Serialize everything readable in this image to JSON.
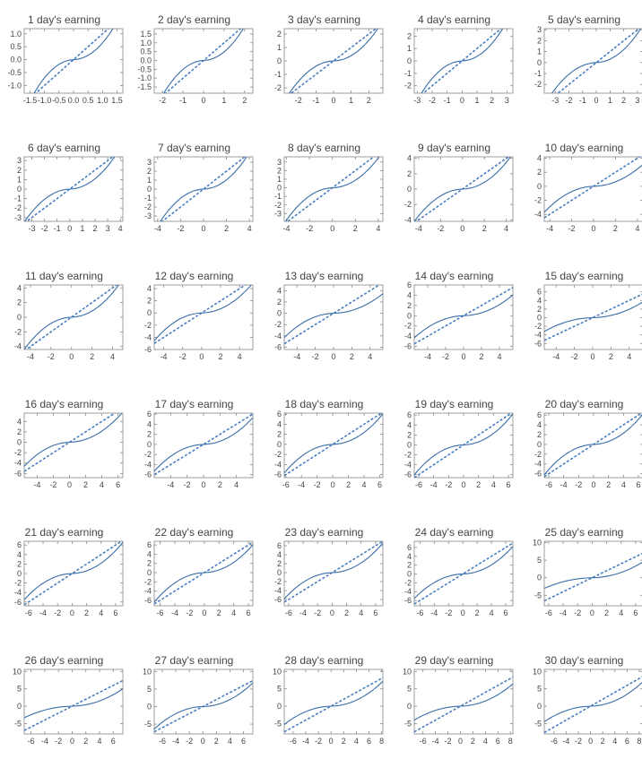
{
  "style": {
    "line_color": "#3a6ea8",
    "ref_color": "#4a7fc0",
    "frame_color": "#888888",
    "text_color": "#444444"
  },
  "chart_data": [
    {
      "type": "line",
      "title": "1 day's earning",
      "xlim": [
        -1.7,
        1.7
      ],
      "ylim": [
        -1.3,
        1.2
      ],
      "xticks": [
        "-1.5",
        "-1.0",
        "-0.5",
        "0.0",
        "0.5",
        "1.0",
        "1.5"
      ],
      "yticks": [
        "-1.0",
        "-0.5",
        "0.0",
        "0.5",
        "1.0"
      ],
      "xtick_values": [
        -1.5,
        -1.0,
        -0.5,
        0.0,
        0.5,
        1.0,
        1.5
      ],
      "ytick_values": [
        -1.0,
        -0.5,
        0.0,
        0.5,
        1.0
      ],
      "sample_tails": [
        -1.3,
        1.2
      ]
    },
    {
      "type": "line",
      "title": "2 day's earning",
      "xlim": [
        -2.4,
        2.4
      ],
      "ylim": [
        -1.85,
        1.8
      ],
      "xticks": [
        "-2",
        "-1",
        "0",
        "1",
        "2"
      ],
      "yticks": [
        "-1.5",
        "-1.0",
        "-0.5",
        "0.0",
        "0.5",
        "1.0",
        "1.5"
      ],
      "xtick_values": [
        -2,
        -1,
        0,
        1,
        2
      ],
      "ytick_values": [
        -1.5,
        -1.0,
        -0.5,
        0.0,
        0.5,
        1.0,
        1.5
      ],
      "sample_tails": [
        -1.85,
        1.8
      ]
    },
    {
      "type": "line",
      "title": "3 day's earning",
      "xlim": [
        -2.8,
        2.8
      ],
      "ylim": [
        -2.4,
        2.4
      ],
      "xticks": [
        "-2",
        "-1",
        "0",
        "1",
        "2"
      ],
      "yticks": [
        "-2",
        "-1",
        "0",
        "1",
        "2"
      ],
      "xtick_values": [
        -2,
        -1,
        0,
        1,
        2
      ],
      "ytick_values": [
        -2,
        -1,
        0,
        1,
        2
      ],
      "sample_tails": [
        -2.4,
        2.4
      ]
    },
    {
      "type": "line",
      "title": "4 day's earning",
      "xlim": [
        -3.2,
        3.4
      ],
      "ylim": [
        -2.6,
        2.6
      ],
      "xticks": [
        "-3",
        "-2",
        "-1",
        "0",
        "1",
        "2",
        "3"
      ],
      "yticks": [
        "-2",
        "-1",
        "0",
        "1",
        "2"
      ],
      "xtick_values": [
        -3,
        -2,
        -1,
        0,
        1,
        2,
        3
      ],
      "ytick_values": [
        -2,
        -1,
        0,
        1,
        2
      ],
      "sample_tails": [
        -2.6,
        2.6
      ]
    },
    {
      "type": "line",
      "title": "5 day's earning",
      "xlim": [
        -3.8,
        3.4
      ],
      "ylim": [
        -2.8,
        3.1
      ],
      "xticks": [
        "-3",
        "-2",
        "-1",
        "0",
        "1",
        "2",
        "3"
      ],
      "yticks": [
        "-2",
        "-1",
        "0",
        "1",
        "2",
        "3"
      ],
      "xtick_values": [
        -3,
        -2,
        -1,
        0,
        1,
        2,
        3
      ],
      "ytick_values": [
        -2,
        -1,
        0,
        1,
        2,
        3
      ],
      "sample_tails": [
        -2.8,
        3.1
      ]
    },
    {
      "type": "line",
      "title": "6 day's earning",
      "xlim": [
        -3.6,
        4.2
      ],
      "ylim": [
        -3.4,
        3.4
      ],
      "xticks": [
        "-3",
        "-2",
        "-1",
        "0",
        "1",
        "2",
        "3",
        "4"
      ],
      "yticks": [
        "-3",
        "-2",
        "-1",
        "0",
        "1",
        "2",
        "3"
      ],
      "xtick_values": [
        -3,
        -2,
        -1,
        0,
        1,
        2,
        3,
        4
      ],
      "ytick_values": [
        -3,
        -2,
        -1,
        0,
        1,
        2,
        3
      ],
      "sample_tails": [
        -3.4,
        3.4
      ]
    },
    {
      "type": "line",
      "title": "7 day's earning",
      "xlim": [
        -4.3,
        4.3
      ],
      "ylim": [
        -3.6,
        3.6
      ],
      "xticks": [
        "-4",
        "-2",
        "0",
        "2",
        "4"
      ],
      "yticks": [
        "-3",
        "-2",
        "-1",
        "0",
        "1",
        "2",
        "3"
      ],
      "xtick_values": [
        -4,
        -2,
        0,
        2,
        4
      ],
      "ytick_values": [
        -3,
        -2,
        -1,
        0,
        1,
        2,
        3
      ],
      "sample_tails": [
        -3.6,
        3.6
      ]
    },
    {
      "type": "line",
      "title": "8 day's earning",
      "xlim": [
        -4.2,
        4.4
      ],
      "ylim": [
        -3.9,
        3.6
      ],
      "xticks": [
        "-4",
        "-2",
        "0",
        "2",
        "4"
      ],
      "yticks": [
        "-3",
        "-2",
        "-1",
        "0",
        "1",
        "2",
        "3"
      ],
      "xtick_values": [
        -4,
        -2,
        0,
        2,
        4
      ],
      "ytick_values": [
        -3,
        -2,
        -1,
        0,
        1,
        2,
        3
      ],
      "sample_tails": [
        -3.9,
        3.6
      ]
    },
    {
      "type": "line",
      "title": "9 day's earning",
      "xlim": [
        -4.4,
        4.6
      ],
      "ylim": [
        -4.2,
        4.2
      ],
      "xticks": [
        "-4",
        "-2",
        "0",
        "2",
        "4"
      ],
      "yticks": [
        "-4",
        "-2",
        "0",
        "2",
        "4"
      ],
      "xtick_values": [
        -4,
        -2,
        0,
        2,
        4
      ],
      "ytick_values": [
        -4,
        -2,
        0,
        2,
        4
      ],
      "sample_tails": [
        -4.2,
        4.2
      ]
    },
    {
      "type": "line",
      "title": "10 day's earning",
      "xlim": [
        -4.5,
        4.5
      ],
      "ylim": [
        -5.0,
        4.2
      ],
      "xticks": [
        "-4",
        "-2",
        "0",
        "2",
        "4"
      ],
      "yticks": [
        "-4",
        "-2",
        "0",
        "2",
        "4"
      ],
      "xtick_values": [
        -4,
        -2,
        0,
        2,
        4
      ],
      "ytick_values": [
        -4,
        -2,
        0,
        2,
        4
      ],
      "sample_tails": [
        -5.0,
        4.2
      ]
    },
    {
      "type": "line",
      "title": "11 day's earning",
      "xlim": [
        -4.6,
        5.0
      ],
      "ylim": [
        -4.4,
        4.4
      ],
      "xticks": [
        "-4",
        "-2",
        "0",
        "2",
        "4"
      ],
      "yticks": [
        "-4",
        "-2",
        "0",
        "2",
        "4"
      ],
      "xtick_values": [
        -4,
        -2,
        0,
        2,
        4
      ],
      "ytick_values": [
        -4,
        -2,
        0,
        2,
        4
      ],
      "sample_tails": [
        -4.4,
        4.4
      ]
    },
    {
      "type": "line",
      "title": "12 day's earning",
      "xlim": [
        -5.0,
        5.4
      ],
      "ylim": [
        -6.0,
        4.6
      ],
      "xticks": [
        "-4",
        "-2",
        "0",
        "2",
        "4"
      ],
      "yticks": [
        "-6",
        "-4",
        "-2",
        "0",
        "2",
        "4"
      ],
      "xtick_values": [
        -4,
        -2,
        0,
        2,
        4
      ],
      "ytick_values": [
        -6,
        -4,
        -2,
        0,
        2,
        4
      ],
      "sample_tails": [
        -5.0,
        4.6
      ]
    },
    {
      "type": "line",
      "title": "13 day's earning",
      "xlim": [
        -5.4,
        5.4
      ],
      "ylim": [
        -6.4,
        5.0
      ],
      "xticks": [
        "-4",
        "-2",
        "0",
        "2",
        "4"
      ],
      "yticks": [
        "-6",
        "-4",
        "-2",
        "0",
        "2",
        "4"
      ],
      "xtick_values": [
        -4,
        -2,
        0,
        2,
        4
      ],
      "ytick_values": [
        -6,
        -4,
        -2,
        0,
        2,
        4
      ],
      "sample_tails": [
        -6.2,
        5.0
      ]
    },
    {
      "type": "line",
      "title": "14 day's earning",
      "xlim": [
        -5.5,
        5.5
      ],
      "ylim": [
        -6.6,
        6.0
      ],
      "xticks": [
        "-4",
        "-2",
        "0",
        "2",
        "4"
      ],
      "yticks": [
        "-6",
        "-4",
        "-2",
        "0",
        "2",
        "4",
        "6"
      ],
      "xtick_values": [
        -4,
        -2,
        0,
        2,
        4
      ],
      "ytick_values": [
        -6,
        -4,
        -2,
        0,
        2,
        4,
        6
      ],
      "sample_tails": [
        -6.4,
        6.0
      ]
    },
    {
      "type": "line",
      "title": "15 day's earning",
      "xlim": [
        -5.3,
        5.5
      ],
      "ylim": [
        -7.4,
        7.6
      ],
      "xticks": [
        "-4",
        "-2",
        "0",
        "2",
        "4"
      ],
      "yticks": [
        "-6",
        "-4",
        "-2",
        "0",
        "2",
        "4",
        "6"
      ],
      "xtick_values": [
        -4,
        -2,
        0,
        2,
        4
      ],
      "ytick_values": [
        -6,
        -4,
        -2,
        0,
        2,
        4,
        6
      ],
      "sample_tails": [
        -7.2,
        7.6
      ]
    },
    {
      "type": "line",
      "title": "16 day's earning",
      "xlim": [
        -5.6,
        6.6
      ],
      "ylim": [
        -6.8,
        5.6
      ],
      "xticks": [
        "-4",
        "-2",
        "0",
        "2",
        "4",
        "6"
      ],
      "yticks": [
        "-6",
        "-4",
        "-2",
        "0",
        "2",
        "4"
      ],
      "xtick_values": [
        -4,
        -2,
        0,
        2,
        4,
        6
      ],
      "ytick_values": [
        -6,
        -4,
        -2,
        0,
        2,
        4
      ],
      "sample_tails": [
        -6.2,
        5.6
      ]
    },
    {
      "type": "line",
      "title": "17 day's earning",
      "xlim": [
        -6.0,
        6.0
      ],
      "ylim": [
        -6.6,
        6.2
      ],
      "xticks": [
        "-4",
        "-2",
        "0",
        "2",
        "4"
      ],
      "yticks": [
        "-6",
        "-4",
        "-2",
        "0",
        "2",
        "4",
        "6"
      ],
      "xtick_values": [
        -4,
        -2,
        0,
        2,
        4
      ],
      "ytick_values": [
        -6,
        -4,
        -2,
        0,
        2,
        4,
        6
      ],
      "sample_tails": [
        -6.2,
        6.2
      ]
    },
    {
      "type": "line",
      "title": "18 day's earning",
      "xlim": [
        -6.2,
        6.4
      ],
      "ylim": [
        -6.6,
        6.2
      ],
      "xticks": [
        "-6",
        "-4",
        "-2",
        "0",
        "2",
        "4",
        "6"
      ],
      "yticks": [
        "-6",
        "-4",
        "-2",
        "0",
        "2",
        "4",
        "6"
      ],
      "xtick_values": [
        -6,
        -4,
        -2,
        0,
        2,
        4,
        6
      ],
      "ytick_values": [
        -6,
        -4,
        -2,
        0,
        2,
        4,
        6
      ],
      "sample_tails": [
        -6.2,
        6.2
      ]
    },
    {
      "type": "line",
      "title": "19 day's earning",
      "xlim": [
        -6.6,
        6.6
      ],
      "ylim": [
        -6.6,
        6.4
      ],
      "xticks": [
        "-6",
        "-4",
        "-2",
        "0",
        "2",
        "4",
        "6"
      ],
      "yticks": [
        "-6",
        "-4",
        "-2",
        "0",
        "2",
        "4",
        "6"
      ],
      "xtick_values": [
        -6,
        -4,
        -2,
        0,
        2,
        4,
        6
      ],
      "ytick_values": [
        -6,
        -4,
        -2,
        0,
        2,
        4,
        6
      ],
      "sample_tails": [
        -6.2,
        6.4
      ]
    },
    {
      "type": "line",
      "title": "20 day's earning",
      "xlim": [
        -6.6,
        6.6
      ],
      "ylim": [
        -6.8,
        6.4
      ],
      "xticks": [
        "-6",
        "-4",
        "-2",
        "0",
        "2",
        "4",
        "6"
      ],
      "yticks": [
        "-6",
        "-4",
        "-2",
        "0",
        "2",
        "4",
        "6"
      ],
      "xtick_values": [
        -6,
        -4,
        -2,
        0,
        2,
        4,
        6
      ],
      "ytick_values": [
        -6,
        -4,
        -2,
        0,
        2,
        4,
        6
      ],
      "sample_tails": [
        -6.4,
        6.4
      ]
    },
    {
      "type": "line",
      "title": "21 day's earning",
      "xlim": [
        -6.6,
        7.0
      ],
      "ylim": [
        -6.8,
        6.8
      ],
      "xticks": [
        "-6",
        "-4",
        "-2",
        "0",
        "2",
        "4",
        "6"
      ],
      "yticks": [
        "-6",
        "-4",
        "-2",
        "0",
        "2",
        "4",
        "6"
      ],
      "xtick_values": [
        -6,
        -4,
        -2,
        0,
        2,
        4,
        6
      ],
      "ytick_values": [
        -6,
        -4,
        -2,
        0,
        2,
        4,
        6
      ],
      "sample_tails": [
        -6.4,
        6.8
      ]
    },
    {
      "type": "line",
      "title": "22 day's earning",
      "xlim": [
        -6.8,
        6.6
      ],
      "ylim": [
        -7.2,
        6.8
      ],
      "xticks": [
        "-6",
        "-4",
        "-2",
        "0",
        "2",
        "4",
        "6"
      ],
      "yticks": [
        "-6",
        "-4",
        "-2",
        "0",
        "2",
        "4",
        "6"
      ],
      "xtick_values": [
        -6,
        -4,
        -2,
        0,
        2,
        4,
        6
      ],
      "ytick_values": [
        -6,
        -4,
        -2,
        0,
        2,
        4,
        6
      ],
      "sample_tails": [
        -6.6,
        6.6
      ]
    },
    {
      "type": "line",
      "title": "23 day's earning",
      "xlim": [
        -6.6,
        7.0
      ],
      "ylim": [
        -7.4,
        7.0
      ],
      "xticks": [
        "-6",
        "-4",
        "-2",
        "0",
        "2",
        "4",
        "6"
      ],
      "yticks": [
        "-6",
        "-4",
        "-2",
        "0",
        "2",
        "4",
        "6"
      ],
      "xtick_values": [
        -6,
        -4,
        -2,
        0,
        2,
        4,
        6
      ],
      "ytick_values": [
        -6,
        -4,
        -2,
        0,
        2,
        4,
        6
      ],
      "sample_tails": [
        -6.8,
        6.8
      ]
    },
    {
      "type": "line",
      "title": "24 day's earning",
      "xlim": [
        -6.8,
        7.0
      ],
      "ylim": [
        -7.2,
        7.4
      ],
      "xticks": [
        "-6",
        "-4",
        "-2",
        "0",
        "2",
        "4",
        "6"
      ],
      "yticks": [
        "-6",
        "-4",
        "-2",
        "0",
        "2",
        "4",
        "6"
      ],
      "xtick_values": [
        -6,
        -4,
        -2,
        0,
        2,
        4,
        6
      ],
      "ytick_values": [
        -6,
        -4,
        -2,
        0,
        2,
        4,
        6
      ],
      "sample_tails": [
        -6.8,
        7.2
      ]
    },
    {
      "type": "line",
      "title": "25 day's earning",
      "xlim": [
        -6.6,
        7.0
      ],
      "ylim": [
        -8.0,
        10.4
      ],
      "xticks": [
        "-6",
        "-4",
        "-2",
        "0",
        "2",
        "4",
        "6"
      ],
      "yticks": [
        "-5",
        "0",
        "5",
        "10"
      ],
      "xtick_values": [
        -6,
        -4,
        -2,
        0,
        2,
        4,
        6
      ],
      "ytick_values": [
        -5,
        0,
        5,
        10
      ],
      "sample_tails": [
        -7.6,
        10.0
      ]
    },
    {
      "type": "line",
      "title": "26 day's earning",
      "xlim": [
        -7.0,
        7.4
      ],
      "ylim": [
        -8.0,
        10.6
      ],
      "xticks": [
        "-6",
        "-4",
        "-2",
        "0",
        "2",
        "4",
        "6"
      ],
      "yticks": [
        "-5",
        "0",
        "5",
        "10"
      ],
      "xtick_values": [
        -6,
        -4,
        -2,
        0,
        2,
        4,
        6
      ],
      "ytick_values": [
        -5,
        0,
        5,
        10
      ],
      "sample_tails": [
        -7.4,
        10.0
      ]
    },
    {
      "type": "line",
      "title": "27 day's earning",
      "xlim": [
        -7.2,
        7.4
      ],
      "ylim": [
        -7.8,
        10.6
      ],
      "xticks": [
        "-6",
        "-4",
        "-2",
        "0",
        "2",
        "4",
        "6"
      ],
      "yticks": [
        "-5",
        "0",
        "5",
        "10"
      ],
      "xtick_values": [
        -6,
        -4,
        -2,
        0,
        2,
        4,
        6
      ],
      "ytick_values": [
        -5,
        0,
        5,
        10
      ],
      "sample_tails": [
        -7.4,
        7.4
      ]
    },
    {
      "type": "line",
      "title": "28 day's earning",
      "xlim": [
        -7.4,
        8.2
      ],
      "ylim": [
        -8.0,
        10.6
      ],
      "xticks": [
        "-6",
        "-4",
        "-2",
        "0",
        "2",
        "4",
        "6",
        "8"
      ],
      "yticks": [
        "-5",
        "0",
        "5",
        "10"
      ],
      "xtick_values": [
        -6,
        -4,
        -2,
        0,
        2,
        4,
        6,
        8
      ],
      "ytick_values": [
        -5,
        0,
        5,
        10
      ],
      "sample_tails": [
        -7.8,
        8.6
      ]
    },
    {
      "type": "line",
      "title": "29 day's earning",
      "xlim": [
        -7.4,
        8.4
      ],
      "ylim": [
        -8.0,
        10.6
      ],
      "xticks": [
        "-6",
        "-4",
        "-2",
        "0",
        "2",
        "4",
        "6",
        "8"
      ],
      "yticks": [
        "-5",
        "0",
        "5",
        "10"
      ],
      "xtick_values": [
        -6,
        -4,
        -2,
        0,
        2,
        4,
        6,
        8
      ],
      "ytick_values": [
        -5,
        0,
        5,
        10
      ],
      "sample_tails": [
        -8.0,
        10.0
      ]
    },
    {
      "type": "line",
      "title": "30 day's earning",
      "xlim": [
        -7.6,
        8.6
      ],
      "ylim": [
        -8.0,
        10.6
      ],
      "xticks": [
        "-6",
        "-4",
        "-2",
        "0",
        "2",
        "4",
        "6",
        "8"
      ],
      "yticks": [
        "-5",
        "0",
        "5",
        "10"
      ],
      "xtick_values": [
        -6,
        -4,
        -2,
        0,
        2,
        4,
        6,
        8
      ],
      "ytick_values": [
        -5,
        0,
        5,
        10
      ],
      "sample_tails": [
        -7.8,
        9.6
      ]
    }
  ]
}
